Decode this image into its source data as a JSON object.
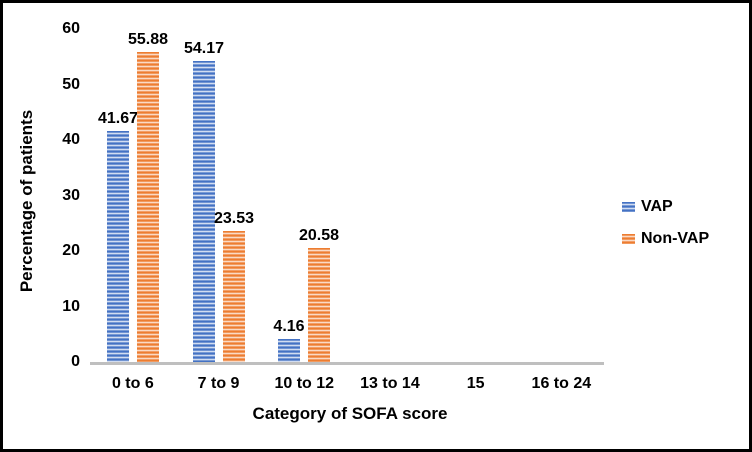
{
  "chart_data": {
    "type": "bar",
    "title": "",
    "xlabel": "Category of SOFA score",
    "ylabel": "Percentage of patients",
    "categories": [
      "0 to 6",
      "7 to 9",
      "10 to 12",
      "13 to 14",
      "15",
      "16 to 24"
    ],
    "series": [
      {
        "name": "VAP",
        "color": "#4472C4",
        "stripe_mid": "#8ea9da",
        "stripe_light": "#eef3fb",
        "values": [
          41.67,
          54.17,
          4.16,
          0,
          0,
          0
        ],
        "labels": [
          "41.67",
          "54.17",
          "4.16",
          "",
          "",
          ""
        ]
      },
      {
        "name": "Non-VAP",
        "color": "#ED7D31",
        "stripe_mid": "#f4ab7c",
        "stripe_light": "#fdeee3",
        "values": [
          55.88,
          23.53,
          20.58,
          0,
          0,
          0
        ],
        "labels": [
          "55.88",
          "23.53",
          "20.58",
          "",
          "",
          ""
        ]
      }
    ],
    "ylim": [
      0,
      60
    ],
    "yticks": [
      0,
      10,
      20,
      30,
      40,
      50,
      60
    ],
    "grid": false,
    "legend_position": "right",
    "bar_pattern": "horizontal-stripes",
    "axis_line_color": "#bfbfbf"
  }
}
